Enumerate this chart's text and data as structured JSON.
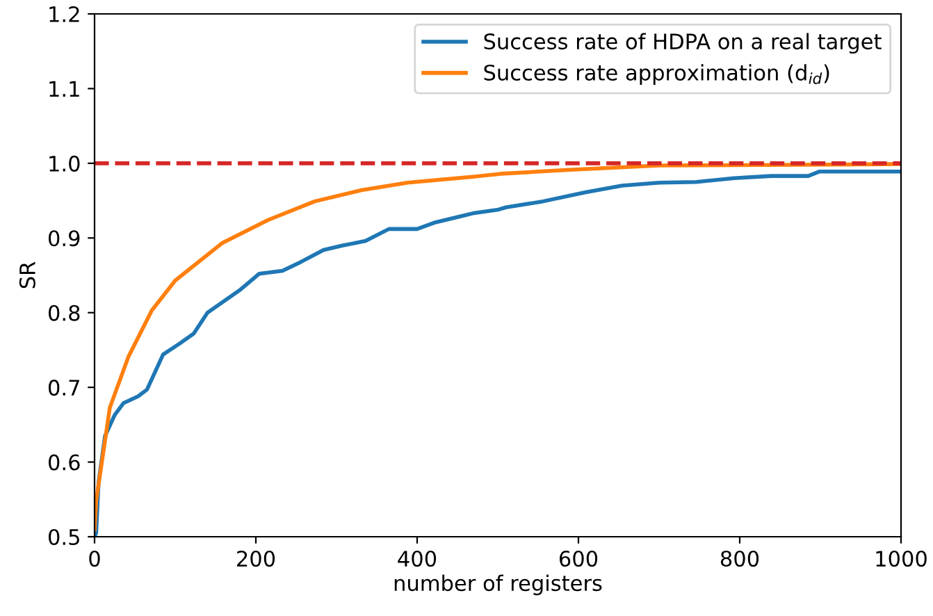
{
  "chart_data": {
    "type": "line",
    "xlabel": "number of registers",
    "ylabel": "SR",
    "xlim": [
      0,
      1000
    ],
    "ylim": [
      0.5,
      1.2
    ],
    "xticks": [
      0,
      200,
      400,
      600,
      800,
      1000
    ],
    "yticks": [
      0.5,
      0.6,
      0.7,
      0.8,
      0.9,
      {
        "value": 1,
        "label": "1.0"
      },
      1.1,
      1.2
    ],
    "grid": false,
    "legend": "top right",
    "line_style": "solid",
    "marker": "none",
    "series": [
      {
        "name": "Success rate of HDPA on a real target",
        "color": "#1f77b4",
        "x": [
          0,
          2,
          5,
          13,
          25,
          36,
          54,
          65,
          85,
          106,
          123,
          140,
          152,
          181,
          204,
          233,
          256,
          284,
          308,
          336,
          365,
          400,
          423,
          458,
          469,
          501,
          510,
          556,
          608,
          654,
          700,
          746,
          793,
          839,
          885,
          899,
          948,
          1000
        ],
        "values": [
          0.5,
          0.505,
          0.573,
          0.635,
          0.663,
          0.679,
          0.688,
          0.697,
          0.744,
          0.759,
          0.772,
          0.8,
          0.809,
          0.831,
          0.852,
          0.856,
          0.868,
          0.884,
          0.89,
          0.896,
          0.912,
          0.912,
          0.921,
          0.93,
          0.933,
          0.938,
          0.941,
          0.949,
          0.961,
          0.97,
          0.974,
          0.975,
          0.98,
          0.983,
          0.983,
          0.989,
          0.989,
          0.989
        ]
      },
      {
        "name": "Success rate approximation (d$_{id}$)",
        "color": "#ff7f0e",
        "x": [
          0,
          2,
          19,
          42,
          71,
          100,
          158,
          215,
          273,
          331,
          388,
          469,
          504,
          585,
          700,
          873,
          1000
        ],
        "values": [
          0.51,
          0.548,
          0.673,
          0.741,
          0.803,
          0.843,
          0.893,
          0.924,
          0.949,
          0.964,
          0.974,
          0.982,
          0.986,
          0.991,
          0.997,
          0.998,
          0.999
        ]
      }
    ],
    "ref_lines": [
      {
        "axis": "y",
        "value": 1.0,
        "color": "#d62728",
        "line_style": "dashed"
      }
    ]
  }
}
